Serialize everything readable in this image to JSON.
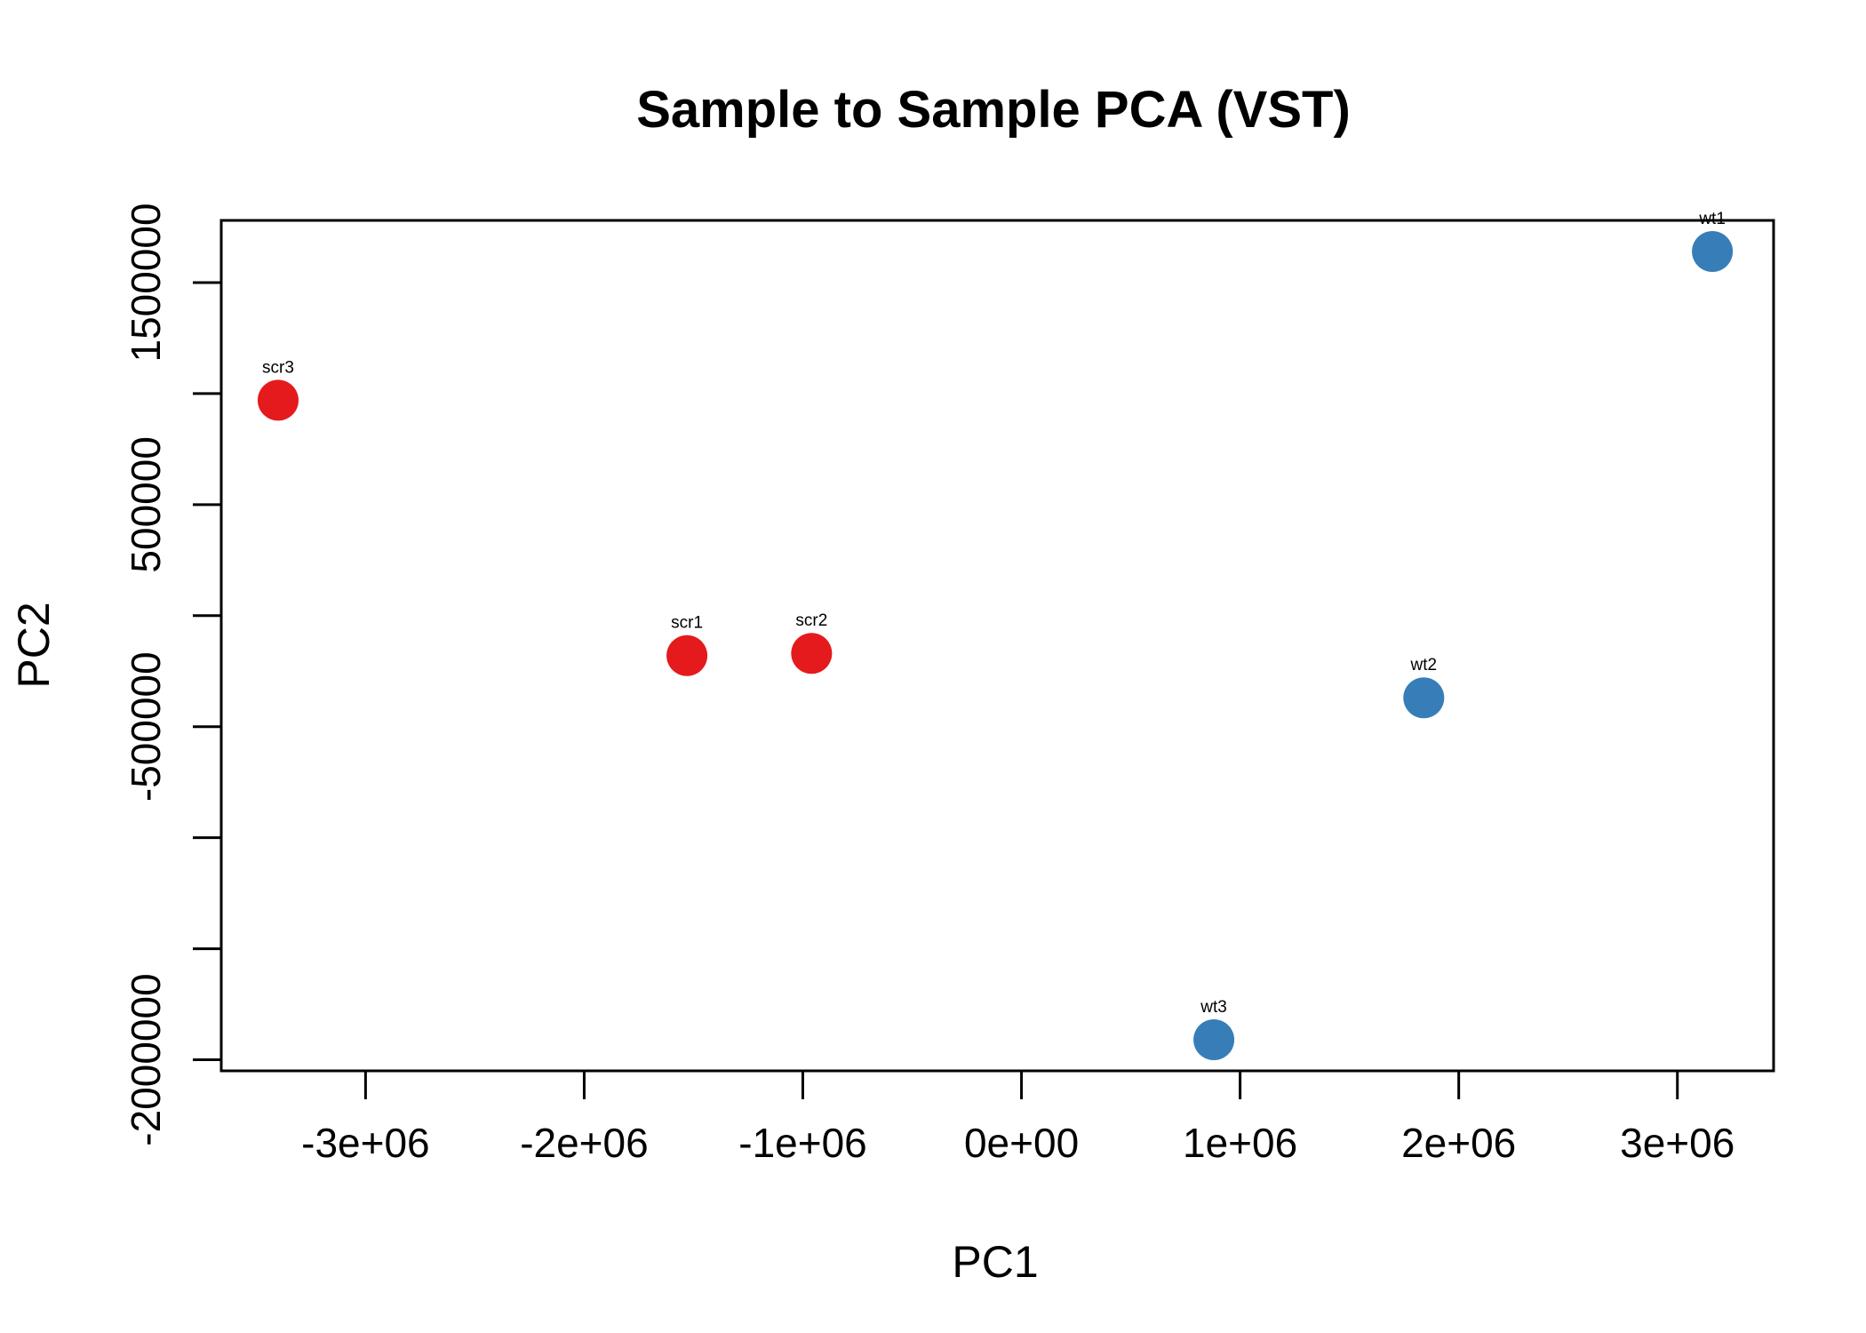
{
  "chart_data": {
    "type": "scatter",
    "title": "Sample to Sample PCA (VST)",
    "xlabel": "PC1",
    "ylabel": "PC2",
    "xlim": [
      -3660000,
      3440000
    ],
    "ylim": [
      -2050000,
      1780000
    ],
    "x_ticks": [
      -3000000,
      -2000000,
      -1000000,
      0,
      1000000,
      2000000,
      3000000
    ],
    "x_tick_labels": [
      "-3e+06",
      "-2e+06",
      "-1e+06",
      "0e+00",
      "1e+06",
      "2e+06",
      "3e+06"
    ],
    "y_ticks": [
      -2000000,
      -1500000,
      -1000000,
      -500000,
      0,
      500000,
      1000000,
      1500000
    ],
    "y_tick_labels": [
      "-2000000",
      "",
      "",
      "-500000",
      "",
      "500000",
      "",
      "1500000"
    ],
    "grid": false,
    "legend": "none",
    "series": [
      {
        "color": "#e41a1c",
        "points": [
          {
            "label": "scr3",
            "x": -3400000,
            "y": 970000
          },
          {
            "label": "scr1",
            "x": -1530000,
            "y": -180000
          },
          {
            "label": "scr2",
            "x": -960000,
            "y": -170000
          }
        ]
      },
      {
        "color": "#377eb8",
        "points": [
          {
            "label": "wt1",
            "x": 3160000,
            "y": 1640000
          },
          {
            "label": "wt2",
            "x": 1840000,
            "y": -370000
          },
          {
            "label": "wt3",
            "x": 880000,
            "y": -1910000
          }
        ]
      }
    ]
  }
}
